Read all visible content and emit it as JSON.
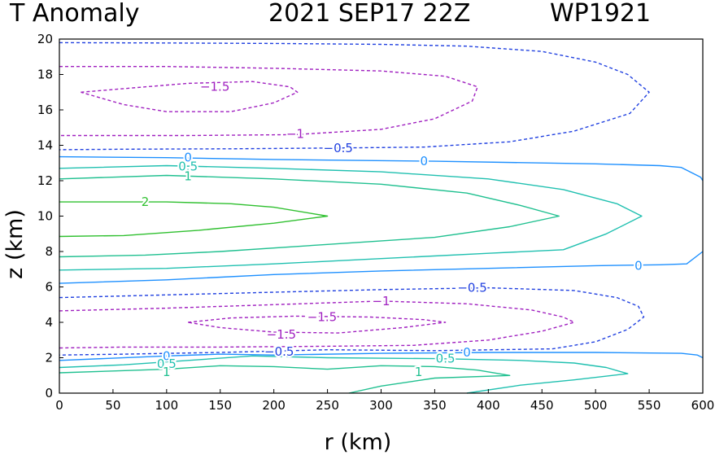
{
  "header": {
    "variable": "T Anomaly",
    "datetime": "2021 SEP17 22Z",
    "storm_id": "WP1921"
  },
  "chart_data": {
    "type": "contour",
    "title": "T Anomaly    2021 SEP17 22Z    WP1921",
    "xlabel": "r (km)",
    "ylabel": "z (km)",
    "xlim": [
      0,
      600
    ],
    "ylim": [
      0,
      20
    ],
    "xticks": [
      "0",
      "50",
      "100",
      "150",
      "200",
      "250",
      "300",
      "350",
      "400",
      "450",
      "500",
      "550",
      "600"
    ],
    "yticks": [
      "0",
      "2",
      "4",
      "6",
      "8",
      "10",
      "12",
      "14",
      "16",
      "18",
      "20"
    ],
    "colors": {
      "neg15": "#a020c0",
      "neg1": "#a020c0",
      "neg05": "#2040e0",
      "zero": "#1e90ff",
      "pos05": "#20c0b0",
      "pos1": "#20c090",
      "pos2": "#30c030"
    },
    "contours": [
      {
        "level": "-0.5",
        "color": "neg05",
        "dash": true,
        "points": [
          [
            0,
            19.8
          ],
          [
            100,
            19.78
          ],
          [
            200,
            19.75
          ],
          [
            300,
            19.7
          ],
          [
            380,
            19.6
          ],
          [
            450,
            19.3
          ],
          [
            500,
            18.7
          ],
          [
            530,
            18.0
          ],
          [
            550,
            17.0
          ],
          [
            532,
            15.8
          ],
          [
            480,
            14.8
          ],
          [
            420,
            14.2
          ],
          [
            340,
            13.9
          ],
          [
            260,
            13.85
          ],
          [
            160,
            13.8
          ],
          [
            60,
            13.78
          ],
          [
            0,
            13.75
          ]
        ]
      },
      {
        "level": "-1",
        "color": "neg1",
        "dash": true,
        "points": [
          [
            0,
            18.45
          ],
          [
            100,
            18.45
          ],
          [
            200,
            18.35
          ],
          [
            300,
            18.2
          ],
          [
            360,
            17.9
          ],
          [
            390,
            17.3
          ],
          [
            385,
            16.5
          ],
          [
            350,
            15.5
          ],
          [
            300,
            14.9
          ],
          [
            220,
            14.6
          ],
          [
            120,
            14.55
          ],
          [
            0,
            14.55
          ]
        ]
      },
      {
        "level": "-1.5",
        "color": "neg15",
        "dash": true,
        "points": [
          [
            20,
            17.0
          ],
          [
            60,
            17.2
          ],
          [
            120,
            17.5
          ],
          [
            180,
            17.6
          ],
          [
            215,
            17.3
          ],
          [
            222,
            17.0
          ],
          [
            200,
            16.4
          ],
          [
            160,
            15.9
          ],
          [
            100,
            15.9
          ],
          [
            60,
            16.3
          ],
          [
            20,
            17.0
          ]
        ]
      },
      {
        "level": "0",
        "color": "zero",
        "dash": false,
        "points": [
          [
            0,
            13.35
          ],
          [
            100,
            13.3
          ],
          [
            200,
            13.2
          ],
          [
            350,
            13.1
          ],
          [
            500,
            12.95
          ],
          [
            560,
            12.85
          ],
          [
            580,
            12.75
          ],
          [
            598,
            12.2
          ],
          [
            600,
            12.0
          ]
        ]
      },
      {
        "level": "0.5",
        "color": "pos05",
        "dash": false,
        "points": [
          [
            0,
            12.7
          ],
          [
            100,
            12.85
          ],
          [
            200,
            12.7
          ],
          [
            300,
            12.5
          ],
          [
            400,
            12.1
          ],
          [
            470,
            11.5
          ],
          [
            520,
            10.7
          ],
          [
            543,
            10.0
          ],
          [
            510,
            9.0
          ],
          [
            470,
            8.1
          ],
          [
            400,
            7.9
          ],
          [
            300,
            7.6
          ],
          [
            200,
            7.3
          ],
          [
            100,
            7.05
          ],
          [
            0,
            6.95
          ]
        ]
      },
      {
        "level": "1",
        "color": "pos1",
        "dash": false,
        "points": [
          [
            0,
            12.1
          ],
          [
            100,
            12.3
          ],
          [
            200,
            12.1
          ],
          [
            300,
            11.8
          ],
          [
            380,
            11.3
          ],
          [
            430,
            10.6
          ],
          [
            466,
            10.0
          ],
          [
            420,
            9.4
          ],
          [
            350,
            8.8
          ],
          [
            250,
            8.4
          ],
          [
            150,
            8.0
          ],
          [
            80,
            7.8
          ],
          [
            0,
            7.7
          ]
        ]
      },
      {
        "level": "2",
        "color": "pos2",
        "dash": false,
        "points": [
          [
            0,
            10.8
          ],
          [
            100,
            10.8
          ],
          [
            160,
            10.7
          ],
          [
            200,
            10.5
          ],
          [
            250,
            10.0
          ],
          [
            200,
            9.6
          ],
          [
            130,
            9.2
          ],
          [
            60,
            8.9
          ],
          [
            0,
            8.85
          ]
        ]
      },
      {
        "level": "0",
        "color": "zero",
        "dash": false,
        "points": [
          [
            0,
            6.2
          ],
          [
            100,
            6.4
          ],
          [
            200,
            6.7
          ],
          [
            300,
            6.9
          ],
          [
            400,
            7.05
          ],
          [
            500,
            7.2
          ],
          [
            560,
            7.25
          ],
          [
            585,
            7.3
          ],
          [
            600,
            8.0
          ]
        ]
      },
      {
        "level": "-0.5",
        "color": "neg05",
        "dash": true,
        "points": [
          [
            0,
            5.4
          ],
          [
            100,
            5.55
          ],
          [
            200,
            5.7
          ],
          [
            300,
            5.85
          ],
          [
            400,
            5.95
          ],
          [
            480,
            5.8
          ],
          [
            520,
            5.4
          ],
          [
            540,
            4.9
          ],
          [
            545,
            4.3
          ],
          [
            530,
            3.6
          ],
          [
            500,
            2.9
          ],
          [
            460,
            2.5
          ],
          [
            350,
            2.4
          ],
          [
            250,
            2.45
          ],
          [
            150,
            2.3
          ],
          [
            60,
            2.2
          ],
          [
            0,
            2.15
          ]
        ]
      },
      {
        "level": "-1",
        "color": "neg1",
        "dash": true,
        "points": [
          [
            0,
            4.65
          ],
          [
            100,
            4.8
          ],
          [
            200,
            5.0
          ],
          [
            300,
            5.2
          ],
          [
            380,
            5.05
          ],
          [
            440,
            4.7
          ],
          [
            470,
            4.3
          ],
          [
            480,
            4.0
          ],
          [
            450,
            3.5
          ],
          [
            400,
            3.0
          ],
          [
            330,
            2.7
          ],
          [
            250,
            2.65
          ],
          [
            150,
            2.6
          ],
          [
            60,
            2.6
          ],
          [
            0,
            2.55
          ]
        ]
      },
      {
        "level": "-1.5",
        "color": "neg15",
        "dash": true,
        "points": [
          [
            120,
            4.0
          ],
          [
            160,
            4.25
          ],
          [
            220,
            4.35
          ],
          [
            290,
            4.3
          ],
          [
            340,
            4.15
          ],
          [
            360,
            4.0
          ],
          [
            320,
            3.7
          ],
          [
            260,
            3.4
          ],
          [
            200,
            3.45
          ],
          [
            150,
            3.7
          ],
          [
            120,
            4.0
          ]
        ]
      },
      {
        "level": "0",
        "color": "zero",
        "dash": false,
        "points": [
          [
            0,
            1.85
          ],
          [
            100,
            2.1
          ],
          [
            150,
            2.2
          ],
          [
            200,
            2.15
          ],
          [
            300,
            2.25
          ],
          [
            400,
            2.3
          ],
          [
            500,
            2.3
          ],
          [
            580,
            2.25
          ],
          [
            595,
            2.15
          ],
          [
            600,
            2.0
          ]
        ]
      },
      {
        "level": "0.5",
        "color": "pos05",
        "dash": false,
        "points": [
          [
            0,
            1.45
          ],
          [
            60,
            1.6
          ],
          [
            120,
            1.85
          ],
          [
            180,
            2.1
          ],
          [
            250,
            2.0
          ],
          [
            350,
            1.95
          ],
          [
            430,
            1.85
          ],
          [
            480,
            1.7
          ],
          [
            510,
            1.45
          ],
          [
            530,
            1.1
          ],
          [
            480,
            0.75
          ],
          [
            430,
            0.45
          ],
          [
            380,
            0.0
          ]
        ]
      },
      {
        "level": "1",
        "color": "pos1",
        "dash": false,
        "points": [
          [
            0,
            1.15
          ],
          [
            50,
            1.25
          ],
          [
            100,
            1.35
          ],
          [
            150,
            1.55
          ],
          [
            200,
            1.5
          ],
          [
            250,
            1.35
          ],
          [
            300,
            1.55
          ],
          [
            350,
            1.5
          ],
          [
            390,
            1.3
          ],
          [
            420,
            1.0
          ],
          [
            350,
            0.85
          ],
          [
            300,
            0.4
          ],
          [
            270,
            0.0
          ]
        ]
      }
    ],
    "labels": [
      {
        "text": "−1.5",
        "x": 145,
        "y": 17.3,
        "color": "neg15"
      },
      {
        "text": "−1",
        "x": 220,
        "y": 14.65,
        "color": "neg1"
      },
      {
        "text": "−0.5",
        "x": 260,
        "y": 13.85,
        "color": "neg05"
      },
      {
        "text": "0",
        "x": 340,
        "y": 13.1,
        "color": "zero"
      },
      {
        "text": "0",
        "x": 120,
        "y": 13.3,
        "color": "zero"
      },
      {
        "text": "0.5",
        "x": 120,
        "y": 12.8,
        "color": "pos05"
      },
      {
        "text": "1",
        "x": 120,
        "y": 12.25,
        "color": "pos1"
      },
      {
        "text": "2",
        "x": 80,
        "y": 10.8,
        "color": "pos2"
      },
      {
        "text": "0",
        "x": 540,
        "y": 7.2,
        "color": "zero"
      },
      {
        "text": "−0.5",
        "x": 385,
        "y": 5.95,
        "color": "neg05"
      },
      {
        "text": "−1",
        "x": 300,
        "y": 5.2,
        "color": "neg1"
      },
      {
        "text": "−1.5",
        "x": 245,
        "y": 4.3,
        "color": "neg15"
      },
      {
        "text": "−1.5",
        "x": 207,
        "y": 3.3,
        "color": "neg15"
      },
      {
        "text": "−0.5",
        "x": 205,
        "y": 2.35,
        "color": "neg05"
      },
      {
        "text": "0",
        "x": 100,
        "y": 2.1,
        "color": "zero"
      },
      {
        "text": "0",
        "x": 380,
        "y": 2.3,
        "color": "zero"
      },
      {
        "text": "0.5",
        "x": 100,
        "y": 1.65,
        "color": "pos05"
      },
      {
        "text": "0.5",
        "x": 360,
        "y": 1.95,
        "color": "pos05"
      },
      {
        "text": "1",
        "x": 100,
        "y": 1.2,
        "color": "pos1"
      },
      {
        "text": "1",
        "x": 335,
        "y": 1.2,
        "color": "pos1"
      }
    ]
  }
}
